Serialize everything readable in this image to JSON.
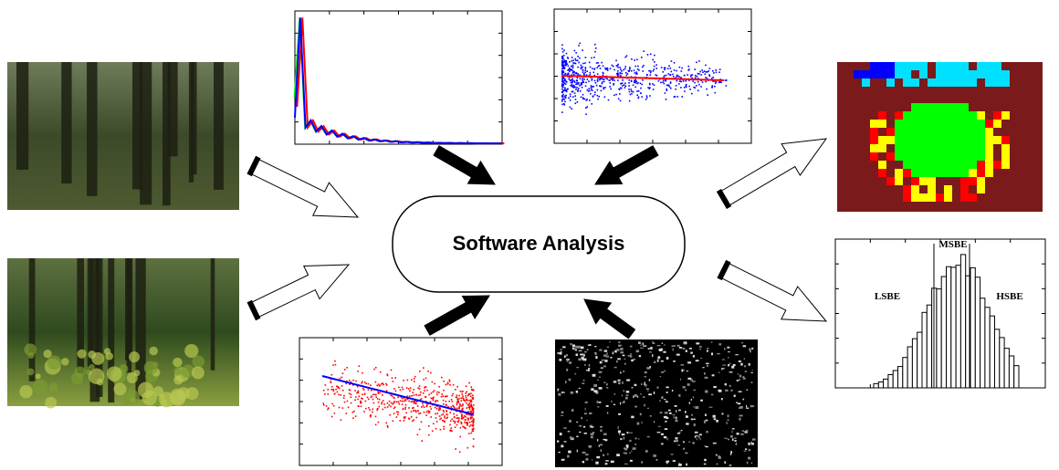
{
  "center": {
    "label": "Software Analysis"
  },
  "histogram": {
    "labels": {
      "msbe": "MSBE",
      "lsbe": "LSBE",
      "hsbe": "HSBE"
    }
  }
}
